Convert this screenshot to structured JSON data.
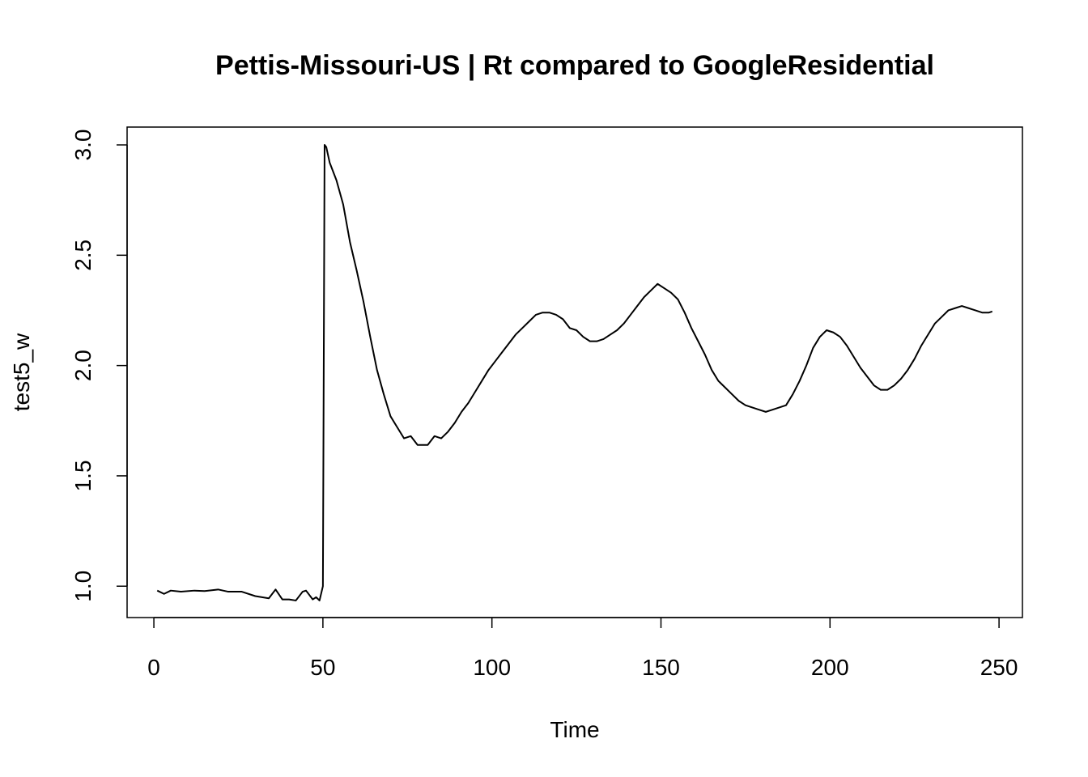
{
  "chart_data": {
    "type": "line",
    "title": "Pettis-Missouri-US | Rt compared to GoogleResidential",
    "xlabel": "Time",
    "ylabel": "test5_w",
    "xlim": [
      -7.92,
      256.92
    ],
    "ylim": [
      0.8578,
      3.0808
    ],
    "x_ticks": [
      0,
      50,
      100,
      150,
      200,
      250
    ],
    "y_ticks": [
      1.0,
      1.5,
      2.0,
      2.5,
      3.0
    ],
    "x_tick_labels": [
      "0",
      "50",
      "100",
      "150",
      "200",
      "250"
    ],
    "y_tick_labels": [
      "1.0",
      "1.5",
      "2.0",
      "2.5",
      "3.0"
    ],
    "grid": false,
    "series": [
      {
        "x": [
          1,
          3,
          5,
          8,
          12,
          15,
          19,
          22,
          26,
          30,
          34,
          36,
          38,
          40,
          42,
          44,
          45,
          47,
          48,
          49,
          50,
          50.5,
          51,
          52,
          54,
          56,
          58,
          60,
          62,
          64,
          66,
          68,
          70,
          72,
          74,
          76,
          78,
          79,
          81,
          83,
          85,
          87,
          89,
          91,
          93,
          95,
          97,
          99,
          101,
          103,
          105,
          107,
          109,
          111,
          113,
          115,
          117,
          119,
          121,
          123,
          125,
          127,
          129,
          131,
          133,
          135,
          137,
          139,
          141,
          143,
          145,
          147,
          149,
          151,
          153,
          155,
          157,
          159,
          161,
          163,
          165,
          167,
          169,
          171,
          173,
          175,
          177,
          179,
          181,
          183,
          185,
          187,
          189,
          191,
          193,
          195,
          197,
          199,
          201,
          203,
          205,
          207,
          209,
          211,
          213,
          215,
          217,
          219,
          221,
          223,
          225,
          227,
          229,
          231,
          233,
          235,
          237,
          239,
          241,
          243,
          245,
          247,
          248
        ],
        "values": [
          0.98,
          0.965,
          0.98,
          0.975,
          0.98,
          0.978,
          0.985,
          0.975,
          0.975,
          0.955,
          0.945,
          0.985,
          0.94,
          0.94,
          0.935,
          0.975,
          0.98,
          0.94,
          0.95,
          0.935,
          1.0,
          3.0,
          2.99,
          2.92,
          2.84,
          2.73,
          2.56,
          2.43,
          2.29,
          2.13,
          1.98,
          1.87,
          1.77,
          1.72,
          1.67,
          1.68,
          1.64,
          1.64,
          1.64,
          1.68,
          1.67,
          1.7,
          1.74,
          1.79,
          1.83,
          1.88,
          1.93,
          1.98,
          2.02,
          2.06,
          2.1,
          2.14,
          2.17,
          2.2,
          2.23,
          2.24,
          2.24,
          2.23,
          2.21,
          2.17,
          2.16,
          2.13,
          2.11,
          2.11,
          2.12,
          2.14,
          2.16,
          2.19,
          2.23,
          2.27,
          2.31,
          2.34,
          2.37,
          2.35,
          2.33,
          2.3,
          2.24,
          2.17,
          2.11,
          2.05,
          1.98,
          1.93,
          1.9,
          1.87,
          1.84,
          1.82,
          1.81,
          1.8,
          1.79,
          1.8,
          1.81,
          1.82,
          1.87,
          1.93,
          2.0,
          2.08,
          2.13,
          2.16,
          2.15,
          2.13,
          2.09,
          2.04,
          1.99,
          1.95,
          1.91,
          1.89,
          1.89,
          1.91,
          1.94,
          1.98,
          2.03,
          2.09,
          2.14,
          2.19,
          2.22,
          2.25,
          2.26,
          2.27,
          2.26,
          2.25,
          2.24,
          2.24,
          2.245
        ]
      }
    ]
  }
}
